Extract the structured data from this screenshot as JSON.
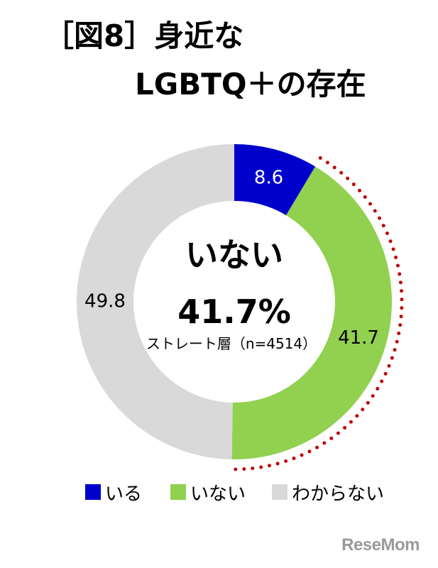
{
  "title": {
    "line1": "［図8］身近な",
    "line2": "LGBTQ＋の存在"
  },
  "chart_data": {
    "type": "pie",
    "donut": true,
    "categories": [
      "いる",
      "いない",
      "わからない"
    ],
    "values": [
      8.6,
      41.7,
      49.8
    ],
    "labels": [
      "8.6",
      "41.7",
      "49.8"
    ],
    "colors": [
      "#0000cc",
      "#92d050",
      "#d9d9d9"
    ],
    "label_colors": [
      "#ffffff",
      "#000000",
      "#000000"
    ],
    "highlight": "いない",
    "highlight_color": "#c00000",
    "center": {
      "heading": "いない",
      "value": "41.7%",
      "note": "ストレート層（n=4514）"
    },
    "legend_position": "bottom"
  },
  "watermark": "ReseMom"
}
